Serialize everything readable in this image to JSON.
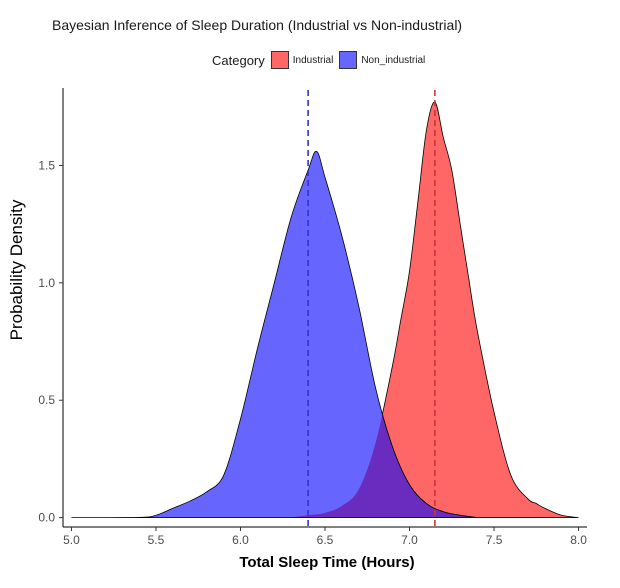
{
  "chart_data": {
    "type": "area",
    "title": "Bayesian Inference of Sleep Duration (Industrial vs Non-industrial)",
    "xlabel": "Total Sleep Time (Hours)",
    "ylabel": "Probability Density",
    "xlim": [
      4.95,
      8.05
    ],
    "ylim": [
      -0.04,
      1.83
    ],
    "xticks": [
      5.0,
      5.5,
      6.0,
      6.5,
      7.0,
      7.5,
      8.0
    ],
    "xtick_labels": [
      "5.0",
      "5.5",
      "6.0",
      "6.5",
      "7.0",
      "7.5",
      "8.0"
    ],
    "yticks": [
      0.0,
      0.5,
      1.0,
      1.5
    ],
    "ytick_labels": [
      "0.0",
      "0.5",
      "1.0",
      "1.5"
    ],
    "grid": false,
    "legend": {
      "title": "Category",
      "position": "top"
    },
    "series": [
      {
        "name": "Industrial",
        "color": "#ff6666",
        "mean_line": 7.15,
        "line_color": "#cc3333",
        "points": [
          [
            6.3,
            0
          ],
          [
            6.4,
            0.01
          ],
          [
            6.5,
            0.02
          ],
          [
            6.6,
            0.05
          ],
          [
            6.7,
            0.12
          ],
          [
            6.8,
            0.32
          ],
          [
            6.9,
            0.65
          ],
          [
            6.95,
            0.85
          ],
          [
            7.0,
            1.05
          ],
          [
            7.05,
            1.35
          ],
          [
            7.1,
            1.65
          ],
          [
            7.15,
            1.77
          ],
          [
            7.2,
            1.62
          ],
          [
            7.25,
            1.48
          ],
          [
            7.3,
            1.25
          ],
          [
            7.35,
            1.02
          ],
          [
            7.4,
            0.8
          ],
          [
            7.5,
            0.45
          ],
          [
            7.6,
            0.18
          ],
          [
            7.7,
            0.08
          ],
          [
            7.75,
            0.06
          ],
          [
            7.8,
            0.04
          ],
          [
            7.9,
            0.01
          ],
          [
            8.0,
            0
          ]
        ]
      },
      {
        "name": "Non_industrial",
        "color": "#6666ff",
        "mean_line": 6.4,
        "line_color": "#3333cc",
        "points": [
          [
            5.0,
            0
          ],
          [
            5.4,
            0.001
          ],
          [
            5.5,
            0.01
          ],
          [
            5.6,
            0.04
          ],
          [
            5.7,
            0.07
          ],
          [
            5.8,
            0.11
          ],
          [
            5.9,
            0.18
          ],
          [
            6.0,
            0.42
          ],
          [
            6.1,
            0.72
          ],
          [
            6.2,
            1.0
          ],
          [
            6.3,
            1.28
          ],
          [
            6.4,
            1.48
          ],
          [
            6.45,
            1.56
          ],
          [
            6.5,
            1.45
          ],
          [
            6.6,
            1.2
          ],
          [
            6.7,
            0.9
          ],
          [
            6.8,
            0.55
          ],
          [
            6.9,
            0.3
          ],
          [
            7.0,
            0.14
          ],
          [
            7.1,
            0.06
          ],
          [
            7.2,
            0.025
          ],
          [
            7.3,
            0.01
          ],
          [
            7.4,
            0
          ]
        ]
      }
    ],
    "overlap_color": "#6a2bbf"
  }
}
